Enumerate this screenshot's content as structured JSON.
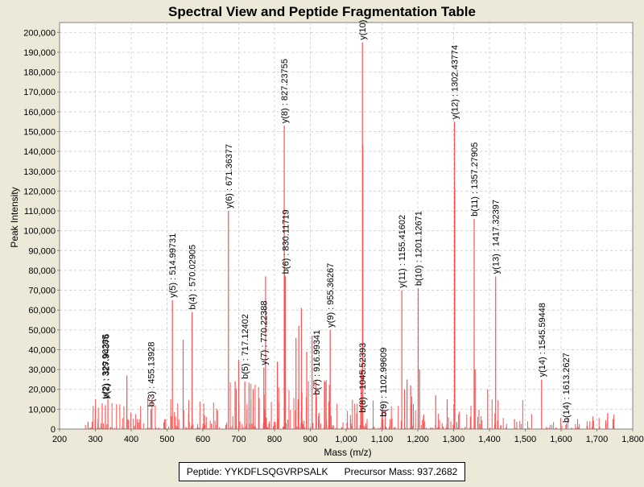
{
  "chart_data": {
    "type": "spectrum",
    "title": "Spectral View and Peptide Fragmentation Table",
    "xlabel": "Mass (m/z)",
    "ylabel": "Peak Intensity",
    "xlim": [
      200,
      1800
    ],
    "ylim": [
      0,
      205000
    ],
    "x_ticks": [
      200,
      300,
      400,
      500,
      600,
      700,
      800,
      900,
      1000,
      1100,
      1200,
      1300,
      1400,
      1500,
      1600,
      1700,
      1800
    ],
    "x_tick_labels": [
      "200",
      "300",
      "400",
      "500",
      "600",
      "700",
      "800",
      "900",
      "1,000",
      "1,100",
      "1,200",
      "1,300",
      "1,400",
      "1,500",
      "1,600",
      "1,700",
      "1,800"
    ],
    "y_ticks": [
      0,
      10000,
      20000,
      30000,
      40000,
      50000,
      60000,
      70000,
      80000,
      90000,
      100000,
      110000,
      120000,
      130000,
      140000,
      150000,
      160000,
      170000,
      180000,
      190000,
      200000
    ],
    "y_tick_labels": [
      "0",
      "10,000",
      "20,000",
      "30,000",
      "40,000",
      "50,000",
      "60,000",
      "70,000",
      "80,000",
      "90,000",
      "100,000",
      "110,000",
      "120,000",
      "130,000",
      "140,000",
      "150,000",
      "160,000",
      "170,000",
      "180,000",
      "190,000",
      "200,000"
    ],
    "peak_color": "#ff5050",
    "major_peaks": [
      {
        "mz": 1045.5,
        "intensity": 195000
      },
      {
        "mz": 1046.5,
        "intensity": 143000
      },
      {
        "mz": 827.2,
        "intensity": 153000
      },
      {
        "mz": 828.2,
        "intensity": 78000
      },
      {
        "mz": 1302.4,
        "intensity": 155000
      },
      {
        "mz": 1303.4,
        "intensity": 121000
      },
      {
        "mz": 1357.3,
        "intensity": 106000
      },
      {
        "mz": 671.4,
        "intensity": 110000
      },
      {
        "mz": 1417.3,
        "intensity": 77000
      },
      {
        "mz": 1155.4,
        "intensity": 70000
      },
      {
        "mz": 1201.1,
        "intensity": 71000
      },
      {
        "mz": 830.1,
        "intensity": 77000
      },
      {
        "mz": 515.0,
        "intensity": 65000
      },
      {
        "mz": 570.0,
        "intensity": 59000
      },
      {
        "mz": 955.4,
        "intensity": 50000
      },
      {
        "mz": 1545.6,
        "intensity": 25000
      },
      {
        "mz": 770.2,
        "intensity": 31000
      },
      {
        "mz": 775.0,
        "intensity": 77000
      },
      {
        "mz": 717.1,
        "intensity": 24000
      },
      {
        "mz": 917.0,
        "intensity": 16000
      },
      {
        "mz": 455.1,
        "intensity": 10000
      },
      {
        "mz": 1613.3,
        "intensity": 2000
      },
      {
        "mz": 319.0,
        "intensity": 13000
      },
      {
        "mz": 328.0,
        "intensity": 12000
      },
      {
        "mz": 335.0,
        "intensity": 15000
      },
      {
        "mz": 388.0,
        "intensity": 27000
      },
      {
        "mz": 545.0,
        "intensity": 45000
      },
      {
        "mz": 690.0,
        "intensity": 24000
      },
      {
        "mz": 700.0,
        "intensity": 35000
      },
      {
        "mz": 808.0,
        "intensity": 34000
      },
      {
        "mz": 860.0,
        "intensity": 46000
      },
      {
        "mz": 868.0,
        "intensity": 52000
      },
      {
        "mz": 875.0,
        "intensity": 61000
      },
      {
        "mz": 890.0,
        "intensity": 39000
      },
      {
        "mz": 905.0,
        "intensity": 47000
      },
      {
        "mz": 1042.0,
        "intensity": 30000
      },
      {
        "mz": 1163.0,
        "intensity": 20000
      },
      {
        "mz": 1170.0,
        "intensity": 25000
      },
      {
        "mz": 1180.0,
        "intensity": 22000
      },
      {
        "mz": 1205.0,
        "intensity": 30000
      },
      {
        "mz": 1250.0,
        "intensity": 17000
      },
      {
        "mz": 1282.0,
        "intensity": 15000
      },
      {
        "mz": 1360.0,
        "intensity": 30000
      },
      {
        "mz": 1395.0,
        "intensity": 20000
      },
      {
        "mz": 1470.0,
        "intensity": 5000
      },
      {
        "mz": 1730.0,
        "intensity": 8000
      },
      {
        "mz": 1745.0,
        "intensity": 5000
      }
    ],
    "annotations": [
      {
        "mz": 327.0,
        "intensity": 14000,
        "label": "y(2) : 329.90285"
      },
      {
        "mz": 329.0,
        "intensity": 14000,
        "label": "b(2) : 327.94376"
      },
      {
        "mz": 455.1,
        "intensity": 10000,
        "label": "b(3) : 455.13928"
      },
      {
        "mz": 515.0,
        "intensity": 65000,
        "label": "y(5) : 514.99731"
      },
      {
        "mz": 570.0,
        "intensity": 59000,
        "label": "b(4) : 570.02905"
      },
      {
        "mz": 671.4,
        "intensity": 110000,
        "label": "y(6) : 671.36377"
      },
      {
        "mz": 717.1,
        "intensity": 24000,
        "label": "b(5) : 717.12402"
      },
      {
        "mz": 770.2,
        "intensity": 31000,
        "label": "y(7) : 770.22388"
      },
      {
        "mz": 827.2,
        "intensity": 153000,
        "label": "y(8) : 827.23755"
      },
      {
        "mz": 830.1,
        "intensity": 77000,
        "label": "b(6) : 830.11719"
      },
      {
        "mz": 917.0,
        "intensity": 16000,
        "label": "b(7) : 916.99341"
      },
      {
        "mz": 955.4,
        "intensity": 50000,
        "label": "y(9) : 955.36267"
      },
      {
        "mz": 1045.5,
        "intensity": 195000,
        "label": "y(10)"
      },
      {
        "mz": 1045.5,
        "intensity": 7000,
        "label": "b(8) : 1045.52393"
      },
      {
        "mz": 1103.0,
        "intensity": 5000,
        "label": "b(9) : 1102.99609"
      },
      {
        "mz": 1155.4,
        "intensity": 70000,
        "label": "y(11) : 1155.41602"
      },
      {
        "mz": 1201.1,
        "intensity": 71000,
        "label": "b(10) : 1201.12671"
      },
      {
        "mz": 1302.4,
        "intensity": 155000,
        "label": "y(12) : 1302.43774"
      },
      {
        "mz": 1357.3,
        "intensity": 106000,
        "label": "b(11) : 1357.27905"
      },
      {
        "mz": 1417.3,
        "intensity": 77000,
        "label": "y(13) : 1417.32397"
      },
      {
        "mz": 1545.6,
        "intensity": 25000,
        "label": "y(14) : 1545.59448"
      },
      {
        "mz": 1613.3,
        "intensity": 2000,
        "label": "b(14) : 1613.2627"
      }
    ]
  },
  "footer": {
    "peptide_label": "Peptide: YYKDFLSQGVRPSALK",
    "precursor_label": "Precursor Mass: 937.2682"
  }
}
